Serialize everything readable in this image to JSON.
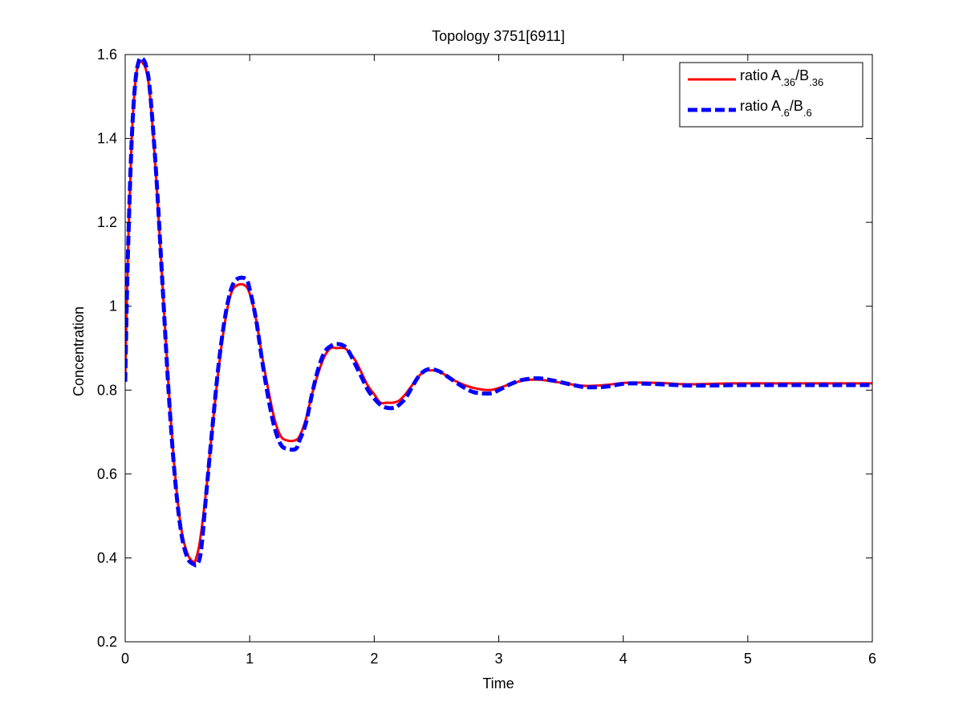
{
  "chart_data": {
    "type": "line",
    "title": "Topology 3751[6911]",
    "xlabel": "Time",
    "ylabel": "Concentration",
    "xlim": [
      0,
      6
    ],
    "ylim": [
      0.2,
      1.6
    ],
    "xticks": [
      0,
      1,
      2,
      3,
      4,
      5,
      6
    ],
    "yticks": [
      0.2,
      0.4,
      0.6,
      0.8,
      1,
      1.2,
      1.4,
      1.6
    ],
    "grid": false,
    "legend_position": "top-right",
    "series": [
      {
        "legend_base": "ratio A",
        "legend_sub1": ".36",
        "legend_mid": "/B",
        "legend_sub2": ".36",
        "color": "#ff0000",
        "style": "solid",
        "x": [
          0,
          0.02,
          0.05,
          0.08,
          0.11,
          0.14,
          0.17,
          0.2,
          0.25,
          0.3,
          0.35,
          0.4,
          0.45,
          0.5,
          0.55,
          0.57,
          0.6,
          0.65,
          0.7,
          0.75,
          0.8,
          0.85,
          0.9,
          0.96,
          1.0,
          1.05,
          1.1,
          1.15,
          1.2,
          1.25,
          1.3,
          1.36,
          1.4,
          1.45,
          1.5,
          1.55,
          1.6,
          1.65,
          1.7,
          1.76,
          1.8,
          1.85,
          1.9,
          1.95,
          2.0,
          2.05,
          2.1,
          2.15,
          2.2,
          2.25,
          2.3,
          2.35,
          2.4,
          2.45,
          2.52,
          2.6,
          2.7,
          2.8,
          2.92,
          3.0,
          3.1,
          3.2,
          3.32,
          3.45,
          3.6,
          3.7,
          3.85,
          4.0,
          4.1,
          4.3,
          4.5,
          4.7,
          4.9,
          5.2,
          5.5,
          5.8,
          6.0
        ],
        "y": [
          0.82,
          1.1,
          1.38,
          1.53,
          1.58,
          1.58,
          1.56,
          1.5,
          1.3,
          1.05,
          0.8,
          0.6,
          0.47,
          0.41,
          0.39,
          0.4,
          0.44,
          0.56,
          0.71,
          0.85,
          0.96,
          1.03,
          1.05,
          1.05,
          1.03,
          0.97,
          0.88,
          0.8,
          0.73,
          0.69,
          0.68,
          0.68,
          0.69,
          0.73,
          0.79,
          0.84,
          0.88,
          0.9,
          0.9,
          0.9,
          0.89,
          0.87,
          0.84,
          0.81,
          0.79,
          0.77,
          0.77,
          0.77,
          0.775,
          0.79,
          0.81,
          0.83,
          0.845,
          0.847,
          0.845,
          0.83,
          0.815,
          0.805,
          0.8,
          0.805,
          0.815,
          0.823,
          0.825,
          0.82,
          0.813,
          0.81,
          0.812,
          0.817,
          0.818,
          0.817,
          0.814,
          0.815,
          0.816,
          0.816,
          0.816,
          0.816,
          0.816
        ]
      },
      {
        "legend_base": "ratio A",
        "legend_sub1": ".6",
        "legend_mid": "/B",
        "legend_sub2": ".6",
        "color": "#0000ff",
        "style": "dashed",
        "x": [
          0,
          0.02,
          0.05,
          0.08,
          0.11,
          0.14,
          0.17,
          0.2,
          0.25,
          0.3,
          0.35,
          0.4,
          0.45,
          0.5,
          0.55,
          0.58,
          0.61,
          0.65,
          0.7,
          0.75,
          0.8,
          0.85,
          0.9,
          0.97,
          1.0,
          1.05,
          1.1,
          1.15,
          1.2,
          1.25,
          1.3,
          1.37,
          1.4,
          1.45,
          1.5,
          1.55,
          1.6,
          1.65,
          1.7,
          1.76,
          1.8,
          1.85,
          1.9,
          1.95,
          2.0,
          2.05,
          2.1,
          2.16,
          2.2,
          2.25,
          2.3,
          2.35,
          2.4,
          2.45,
          2.52,
          2.6,
          2.7,
          2.8,
          2.93,
          3.0,
          3.1,
          3.2,
          3.32,
          3.45,
          3.6,
          3.7,
          3.85,
          4.0,
          4.1,
          4.3,
          4.5,
          4.7,
          4.9,
          5.2,
          5.5,
          5.8,
          6.0
        ],
        "y": [
          0.82,
          1.1,
          1.38,
          1.53,
          1.585,
          1.59,
          1.57,
          1.51,
          1.31,
          1.05,
          0.79,
          0.59,
          0.46,
          0.4,
          0.385,
          0.385,
          0.42,
          0.55,
          0.71,
          0.86,
          0.97,
          1.04,
          1.065,
          1.065,
          1.04,
          0.97,
          0.87,
          0.78,
          0.71,
          0.67,
          0.66,
          0.66,
          0.68,
          0.72,
          0.79,
          0.85,
          0.89,
          0.905,
          0.91,
          0.905,
          0.89,
          0.86,
          0.83,
          0.8,
          0.78,
          0.765,
          0.758,
          0.758,
          0.765,
          0.78,
          0.805,
          0.83,
          0.845,
          0.85,
          0.845,
          0.83,
          0.81,
          0.795,
          0.792,
          0.8,
          0.815,
          0.825,
          0.828,
          0.822,
          0.812,
          0.807,
          0.808,
          0.815,
          0.816,
          0.814,
          0.811,
          0.811,
          0.812,
          0.812,
          0.812,
          0.812,
          0.812
        ]
      }
    ]
  }
}
